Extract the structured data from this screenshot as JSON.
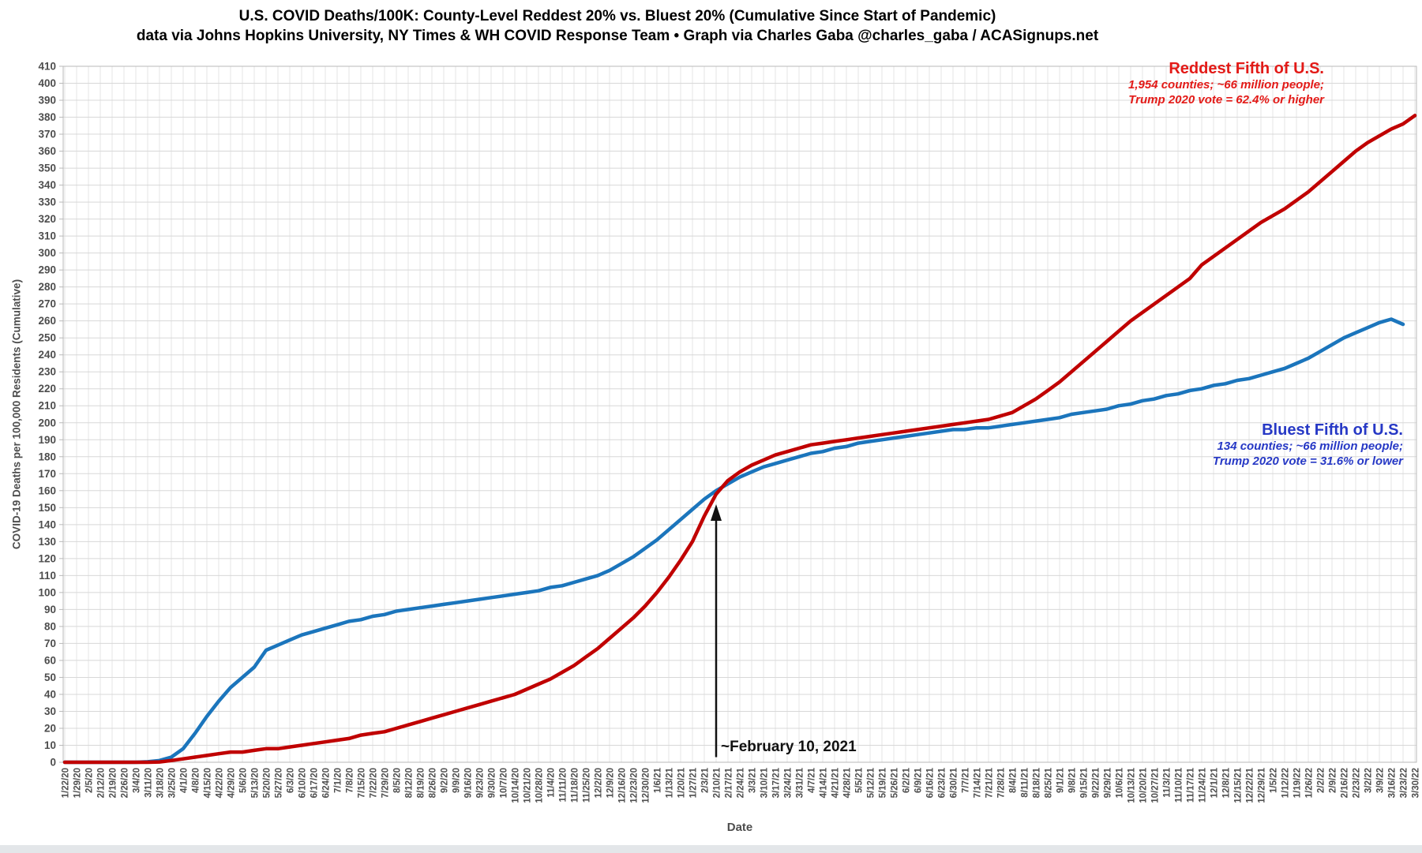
{
  "title": "U.S. COVID Deaths/100K: County-Level Reddest 20% vs. Bluest 20% (Cumulative Since Start of Pandemic)",
  "subtitle": "data via Johns Hopkins University, NY Times & WH COVID Response Team • Graph via Charles Gaba @charles_gaba / ACASignups.net",
  "legend_red": {
    "title": "Reddest Fifth of U.S.",
    "line1": "1,954 counties; ~66 million people;",
    "line2": "Trump 2020 vote = 62.4% or higher"
  },
  "legend_blue": {
    "title": "Bluest Fifth of U.S.",
    "line1": "134 counties; ~66 million people;",
    "line2": "Trump 2020 vote = 31.6% or lower"
  },
  "annotation": {
    "label": "~February 10, 2021"
  },
  "axes": {
    "y_title": "COVID-19 Deaths per 100,000 Residents (Cumulative)",
    "x_title": "Date"
  },
  "colors": {
    "red_line": "#C00000",
    "blue_line": "#1B75BC",
    "red_text": "#E31A17",
    "blue_text": "#2638C5",
    "grid_h": "#D8D8D8",
    "grid_v": "#E4E4E4",
    "spine": "#B9B9B9",
    "axis_text": "#4D4D4D",
    "arrow": "#111111"
  },
  "chart_data": {
    "type": "line",
    "title": "U.S. COVID Deaths/100K: County-Level Reddest 20% vs. Bluest 20% (Cumulative Since Start of Pandemic)",
    "xlabel": "Date",
    "ylabel": "COVID-19 Deaths per 100,000 Residents (Cumulative)",
    "ylim": [
      0,
      410
    ],
    "ytick_step": 10,
    "grid": true,
    "legend_position": "inline-annotations",
    "x": [
      "1/22/20",
      "1/29/20",
      "2/5/20",
      "2/12/20",
      "2/19/20",
      "2/26/20",
      "3/4/20",
      "3/11/20",
      "3/18/20",
      "3/25/20",
      "4/1/20",
      "4/8/20",
      "4/15/20",
      "4/22/20",
      "4/29/20",
      "5/6/20",
      "5/13/20",
      "5/20/20",
      "5/27/20",
      "6/3/20",
      "6/10/20",
      "6/17/20",
      "6/24/20",
      "7/1/20",
      "7/8/20",
      "7/15/20",
      "7/22/20",
      "7/29/20",
      "8/5/20",
      "8/12/20",
      "8/19/20",
      "8/26/20",
      "9/2/20",
      "9/9/20",
      "9/16/20",
      "9/23/20",
      "9/30/20",
      "10/7/20",
      "10/14/20",
      "10/21/20",
      "10/28/20",
      "11/4/20",
      "11/11/20",
      "11/18/20",
      "11/25/20",
      "12/2/20",
      "12/9/20",
      "12/16/20",
      "12/23/20",
      "12/30/20",
      "1/6/21",
      "1/13/21",
      "1/20/21",
      "1/27/21",
      "2/3/21",
      "2/10/21",
      "2/17/21",
      "2/24/21",
      "3/3/21",
      "3/10/21",
      "3/17/21",
      "3/24/21",
      "3/31/21",
      "4/7/21",
      "4/14/21",
      "4/21/21",
      "4/28/21",
      "5/5/21",
      "5/12/21",
      "5/19/21",
      "5/26/21",
      "6/2/21",
      "6/9/21",
      "6/16/21",
      "6/23/21",
      "6/30/21",
      "7/7/21",
      "7/14/21",
      "7/21/21",
      "7/28/21",
      "8/4/21",
      "8/11/21",
      "8/18/21",
      "8/25/21",
      "9/1/21",
      "9/8/21",
      "9/15/21",
      "9/22/21",
      "9/29/21",
      "10/6/21",
      "10/13/21",
      "10/20/21",
      "10/27/21",
      "11/3/21",
      "11/10/21",
      "11/17/21",
      "11/24/21",
      "12/1/21",
      "12/8/21",
      "12/15/21",
      "12/22/21",
      "12/29/21",
      "1/5/22",
      "1/12/22",
      "1/19/22",
      "1/26/22",
      "2/2/22",
      "2/9/22",
      "2/16/22",
      "2/23/22",
      "3/2/22",
      "3/9/22",
      "3/16/22",
      "3/23/22",
      "3/30/22"
    ],
    "series": [
      {
        "name": "Bluest Fifth of U.S.",
        "color": "#1B75BC",
        "values": [
          0,
          0,
          0,
          0,
          0,
          0,
          0,
          0.3,
          1,
          3,
          8,
          17,
          27,
          36,
          44,
          50,
          56,
          66,
          69,
          72,
          75,
          77,
          79,
          81,
          83,
          84,
          86,
          87,
          89,
          90,
          91,
          92,
          93,
          94,
          95,
          96,
          97,
          98,
          99,
          100,
          101,
          103,
          104,
          106,
          108,
          110,
          113,
          117,
          121,
          126,
          131,
          137,
          143,
          149,
          155,
          160,
          164,
          168,
          171,
          174,
          176,
          178,
          180,
          182,
          183,
          185,
          186,
          188,
          189,
          190,
          191,
          192,
          193,
          194,
          195,
          196,
          196,
          197,
          197,
          198,
          199,
          200,
          201,
          202,
          203,
          205,
          206,
          207,
          208,
          210,
          211,
          213,
          214,
          216,
          217,
          219,
          220,
          222,
          223,
          225,
          226,
          228,
          230,
          232,
          235,
          238,
          242,
          246,
          250,
          253,
          256,
          259,
          261,
          258,
          null
        ]
      },
      {
        "name": "Reddest Fifth of U.S.",
        "color": "#C00000",
        "values": [
          0,
          0,
          0,
          0,
          0,
          0,
          0,
          0,
          0.2,
          1,
          2,
          3,
          4,
          5,
          6,
          6,
          7,
          8,
          8,
          9,
          10,
          11,
          12,
          13,
          14,
          16,
          17,
          18,
          20,
          22,
          24,
          26,
          28,
          30,
          32,
          34,
          36,
          38,
          40,
          43,
          46,
          49,
          53,
          57,
          62,
          67,
          73,
          79,
          85,
          92,
          100,
          109,
          119,
          130,
          145,
          158,
          166,
          171,
          175,
          178,
          181,
          183,
          185,
          187,
          188,
          189,
          190,
          191,
          192,
          193,
          194,
          195,
          196,
          197,
          198,
          199,
          200,
          201,
          202,
          204,
          206,
          210,
          214,
          219,
          224,
          230,
          236,
          242,
          248,
          254,
          260,
          265,
          270,
          275,
          280,
          285,
          293,
          298,
          303,
          308,
          313,
          318,
          322,
          326,
          331,
          336,
          342,
          348,
          354,
          360,
          365,
          369,
          373,
          376,
          381
        ]
      }
    ],
    "annotations": [
      {
        "text": "~February 10, 2021",
        "x_label": "2/10/21",
        "y_tip": 152,
        "y_base": 3
      }
    ]
  }
}
